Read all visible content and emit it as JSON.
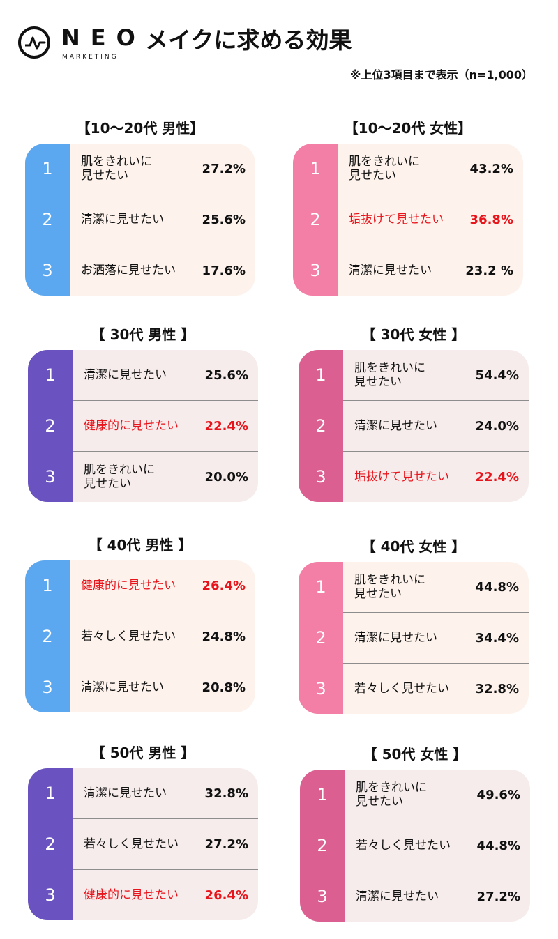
{
  "logo": {
    "word": "NEO",
    "sub": "MARKETING"
  },
  "title": "メイクに求める効果",
  "note": "※上位3項目まで表示（n=1,000）",
  "chart_data": [
    {
      "type": "table",
      "title": "【10〜20代 男性】",
      "items": [
        {
          "rank": "1",
          "label": "肌をきれいに\n見せたい",
          "value": "27.2%",
          "pct": 27.2,
          "highlight": false
        },
        {
          "rank": "2",
          "label": "清潔に見せたい",
          "value": "25.6%",
          "pct": 25.6,
          "highlight": false
        },
        {
          "rank": "3",
          "label": "お洒落に見せたい",
          "value": "17.6%",
          "pct": 17.6,
          "highlight": false
        }
      ]
    },
    {
      "type": "table",
      "title": "【10〜20代 女性】",
      "items": [
        {
          "rank": "1",
          "label": "肌をきれいに\n見せたい",
          "value": "43.2%",
          "pct": 43.2,
          "highlight": false
        },
        {
          "rank": "2",
          "label": "垢抜けて見せたい",
          "value": "36.8%",
          "pct": 36.8,
          "highlight": true
        },
        {
          "rank": "3",
          "label": "清潔に見せたい",
          "value": "23.2 %",
          "pct": 23.2,
          "highlight": false
        }
      ]
    },
    {
      "type": "table",
      "title": "【 30代 男性 】",
      "items": [
        {
          "rank": "1",
          "label": "清潔に見せたい",
          "value": "25.6%",
          "pct": 25.6,
          "highlight": false
        },
        {
          "rank": "2",
          "label": "健康的に見せたい",
          "value": "22.4%",
          "pct": 22.4,
          "highlight": true
        },
        {
          "rank": "3",
          "label": "肌をきれいに\n見せたい",
          "value": "20.0%",
          "pct": 20.0,
          "highlight": false
        }
      ]
    },
    {
      "type": "table",
      "title": "【 30代 女性 】",
      "items": [
        {
          "rank": "1",
          "label": "肌をきれいに\n見せたい",
          "value": "54.4%",
          "pct": 54.4,
          "highlight": false
        },
        {
          "rank": "2",
          "label": "清潔に見せたい",
          "value": "24.0%",
          "pct": 24.0,
          "highlight": false
        },
        {
          "rank": "3",
          "label": "垢抜けて見せたい",
          "value": "22.4%",
          "pct": 22.4,
          "highlight": true
        }
      ]
    },
    {
      "type": "table",
      "title": "【 40代 男性 】",
      "items": [
        {
          "rank": "1",
          "label": "健康的に見せたい",
          "value": "26.4%",
          "pct": 26.4,
          "highlight": true
        },
        {
          "rank": "2",
          "label": "若々しく見せたい",
          "value": "24.8%",
          "pct": 24.8,
          "highlight": false
        },
        {
          "rank": "3",
          "label": "清潔に見せたい",
          "value": "20.8%",
          "pct": 20.8,
          "highlight": false
        }
      ]
    },
    {
      "type": "table",
      "title": "【 40代 女性 】",
      "items": [
        {
          "rank": "1",
          "label": "肌をきれいに\n見せたい",
          "value": "44.8%",
          "pct": 44.8,
          "highlight": false
        },
        {
          "rank": "2",
          "label": "清潔に見せたい",
          "value": "34.4%",
          "pct": 34.4,
          "highlight": false
        },
        {
          "rank": "3",
          "label": "若々しく見せたい",
          "value": "32.8%",
          "pct": 32.8,
          "highlight": false
        }
      ]
    },
    {
      "type": "table",
      "title": "【 50代 男性 】",
      "items": [
        {
          "rank": "1",
          "label": "清潔に見せたい",
          "value": "32.8%",
          "pct": 32.8,
          "highlight": false
        },
        {
          "rank": "2",
          "label": "若々しく見せたい",
          "value": "27.2%",
          "pct": 27.2,
          "highlight": false
        },
        {
          "rank": "3",
          "label": "健康的に見せたい",
          "value": "26.4%",
          "pct": 26.4,
          "highlight": true
        }
      ]
    },
    {
      "type": "table",
      "title": "【 50代 女性 】",
      "items": [
        {
          "rank": "1",
          "label": "肌をきれいに\n見せたい",
          "value": "49.6%",
          "pct": 49.6,
          "highlight": false
        },
        {
          "rank": "2",
          "label": "若々しく見せたい",
          "value": "44.8%",
          "pct": 44.8,
          "highlight": false
        },
        {
          "rank": "3",
          "label": "清潔に見せたい",
          "value": "27.2%",
          "pct": 27.2,
          "highlight": false
        }
      ]
    }
  ],
  "colors": {
    "light_blue": "#5ba8f0",
    "purple": "#6a52c0",
    "pink": "#f47fa6",
    "deep_pink": "#dc5f92",
    "cream": "#fdf3ec",
    "blush": "#f7ecec",
    "highlight_text": "#e8141b"
  }
}
